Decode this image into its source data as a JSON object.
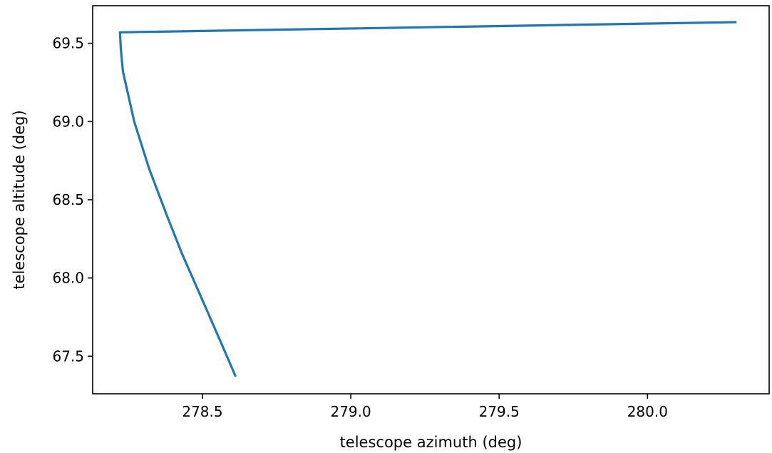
{
  "chart_data": {
    "type": "line",
    "title": "",
    "xlabel": "telescope azimuth (deg)",
    "ylabel": "telescope altitude (deg)",
    "xlim": [
      278.13,
      280.41
    ],
    "ylim": [
      67.26,
      69.74
    ],
    "xticks": [
      278.5,
      279.0,
      279.5,
      280.0
    ],
    "xtick_labels": [
      "278.5",
      "279.0",
      "279.5",
      "280.0"
    ],
    "yticks": [
      67.5,
      68.0,
      68.5,
      69.0,
      69.5
    ],
    "ytick_labels": [
      "67.5",
      "68.0",
      "68.5",
      "69.0",
      "69.5"
    ],
    "grid": false,
    "legend": "none",
    "series": [
      {
        "color": "#1f77b4",
        "x": [
          278.612,
          278.555,
          278.495,
          278.43,
          278.38,
          278.32,
          278.27,
          278.232,
          278.225,
          278.222,
          280.3
        ],
        "y": [
          67.37,
          67.62,
          67.88,
          68.16,
          68.4,
          68.7,
          69.0,
          69.32,
          69.46,
          69.57,
          69.635
        ]
      }
    ]
  }
}
